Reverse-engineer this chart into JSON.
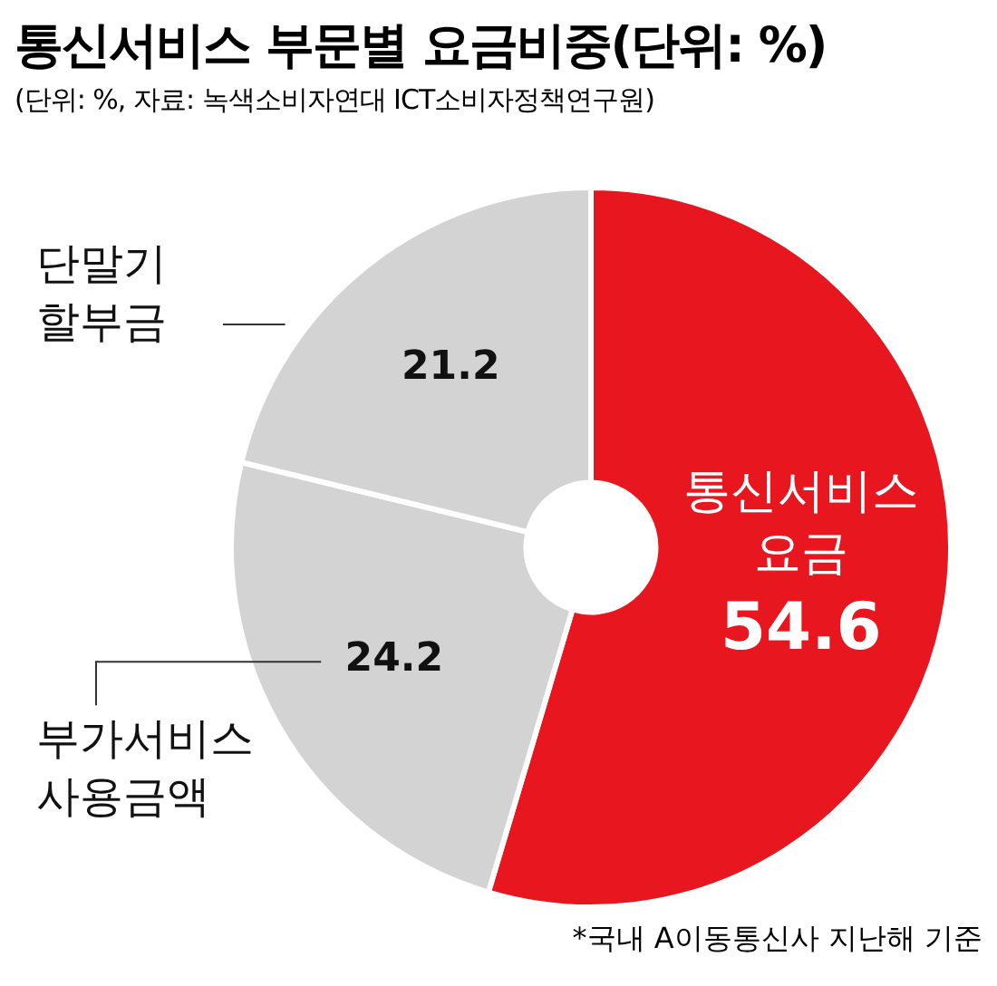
{
  "chart_data": {
    "type": "donut",
    "title": "통신서비스 부문별 요금비중(단위: %)",
    "subtitle": "(단위: %, 자료: 녹색소비자연대 ICT소비자정책연구원)",
    "categories": [
      "통신서비스 요금",
      "부가서비스 사용금액",
      "단말기 할부금"
    ],
    "values": [
      54.6,
      24.2,
      21.2
    ],
    "colors": [
      "#e8161e",
      "#d3d3d3",
      "#d3d3d3"
    ],
    "data_labels": true,
    "legend": false,
    "annotations": [
      "*국내 A이동통신사 지난해 기준"
    ]
  }
}
